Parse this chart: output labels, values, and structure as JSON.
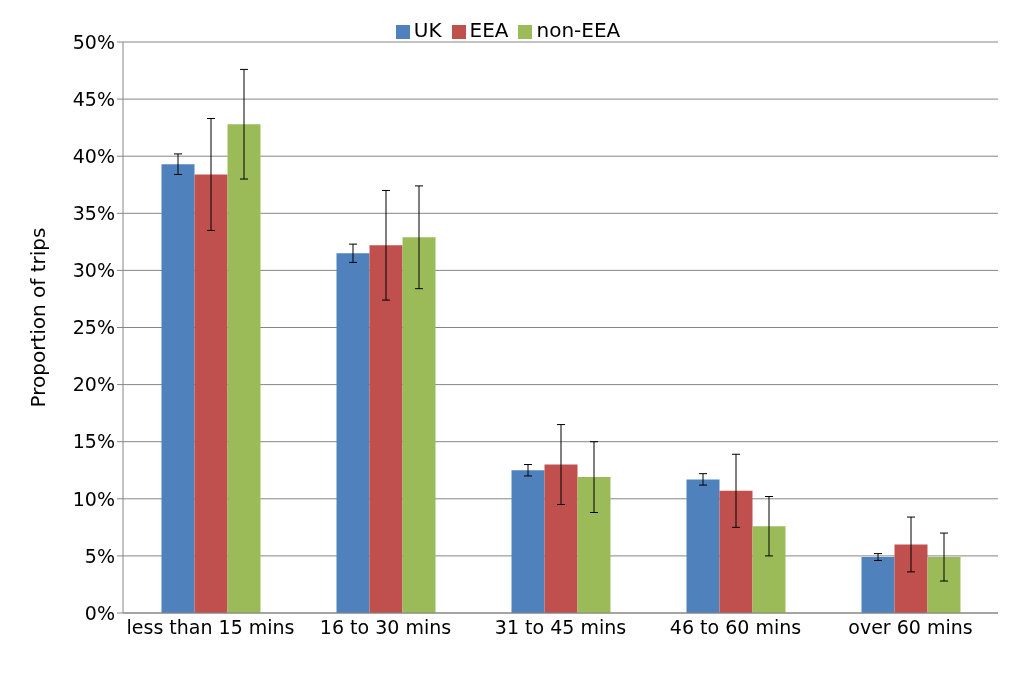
{
  "chart_data": {
    "type": "bar",
    "ylabel": "Proportion of trips",
    "categories": [
      "less than 15 mins",
      "16 to 30 mins",
      "31 to 45 mins",
      "46 to 60 mins",
      "over 60 mins"
    ],
    "series": [
      {
        "name": "UK",
        "color": "#4f81bd",
        "values": [
          39.3,
          31.5,
          12.5,
          11.7,
          4.9
        ],
        "errors": [
          0.9,
          0.8,
          0.5,
          0.5,
          0.3
        ]
      },
      {
        "name": "EEA",
        "color": "#c0504d",
        "values": [
          38.4,
          32.2,
          13.0,
          10.7,
          6.0
        ],
        "errors": [
          4.9,
          4.8,
          3.5,
          3.2,
          2.4
        ]
      },
      {
        "name": "non-EEA",
        "color": "#9bbb59",
        "values": [
          42.8,
          32.9,
          11.9,
          7.6,
          4.9
        ],
        "errors": [
          4.8,
          4.5,
          3.1,
          2.6,
          2.1
        ]
      }
    ],
    "ylim": [
      0,
      50
    ],
    "yticks": [
      {
        "value": 0,
        "label": "0%"
      },
      {
        "value": 5,
        "label": "5%"
      },
      {
        "value": 10,
        "label": "10%"
      },
      {
        "value": 15,
        "label": "15%"
      },
      {
        "value": 20,
        "label": "20%"
      },
      {
        "value": 25,
        "label": "25%"
      },
      {
        "value": 30,
        "label": "30%"
      },
      {
        "value": 35,
        "label": "35%"
      },
      {
        "value": 40,
        "label": "40%"
      },
      {
        "value": 45,
        "label": "45%"
      },
      {
        "value": 50,
        "label": "50%"
      }
    ],
    "grid": "y",
    "legend": "top"
  }
}
